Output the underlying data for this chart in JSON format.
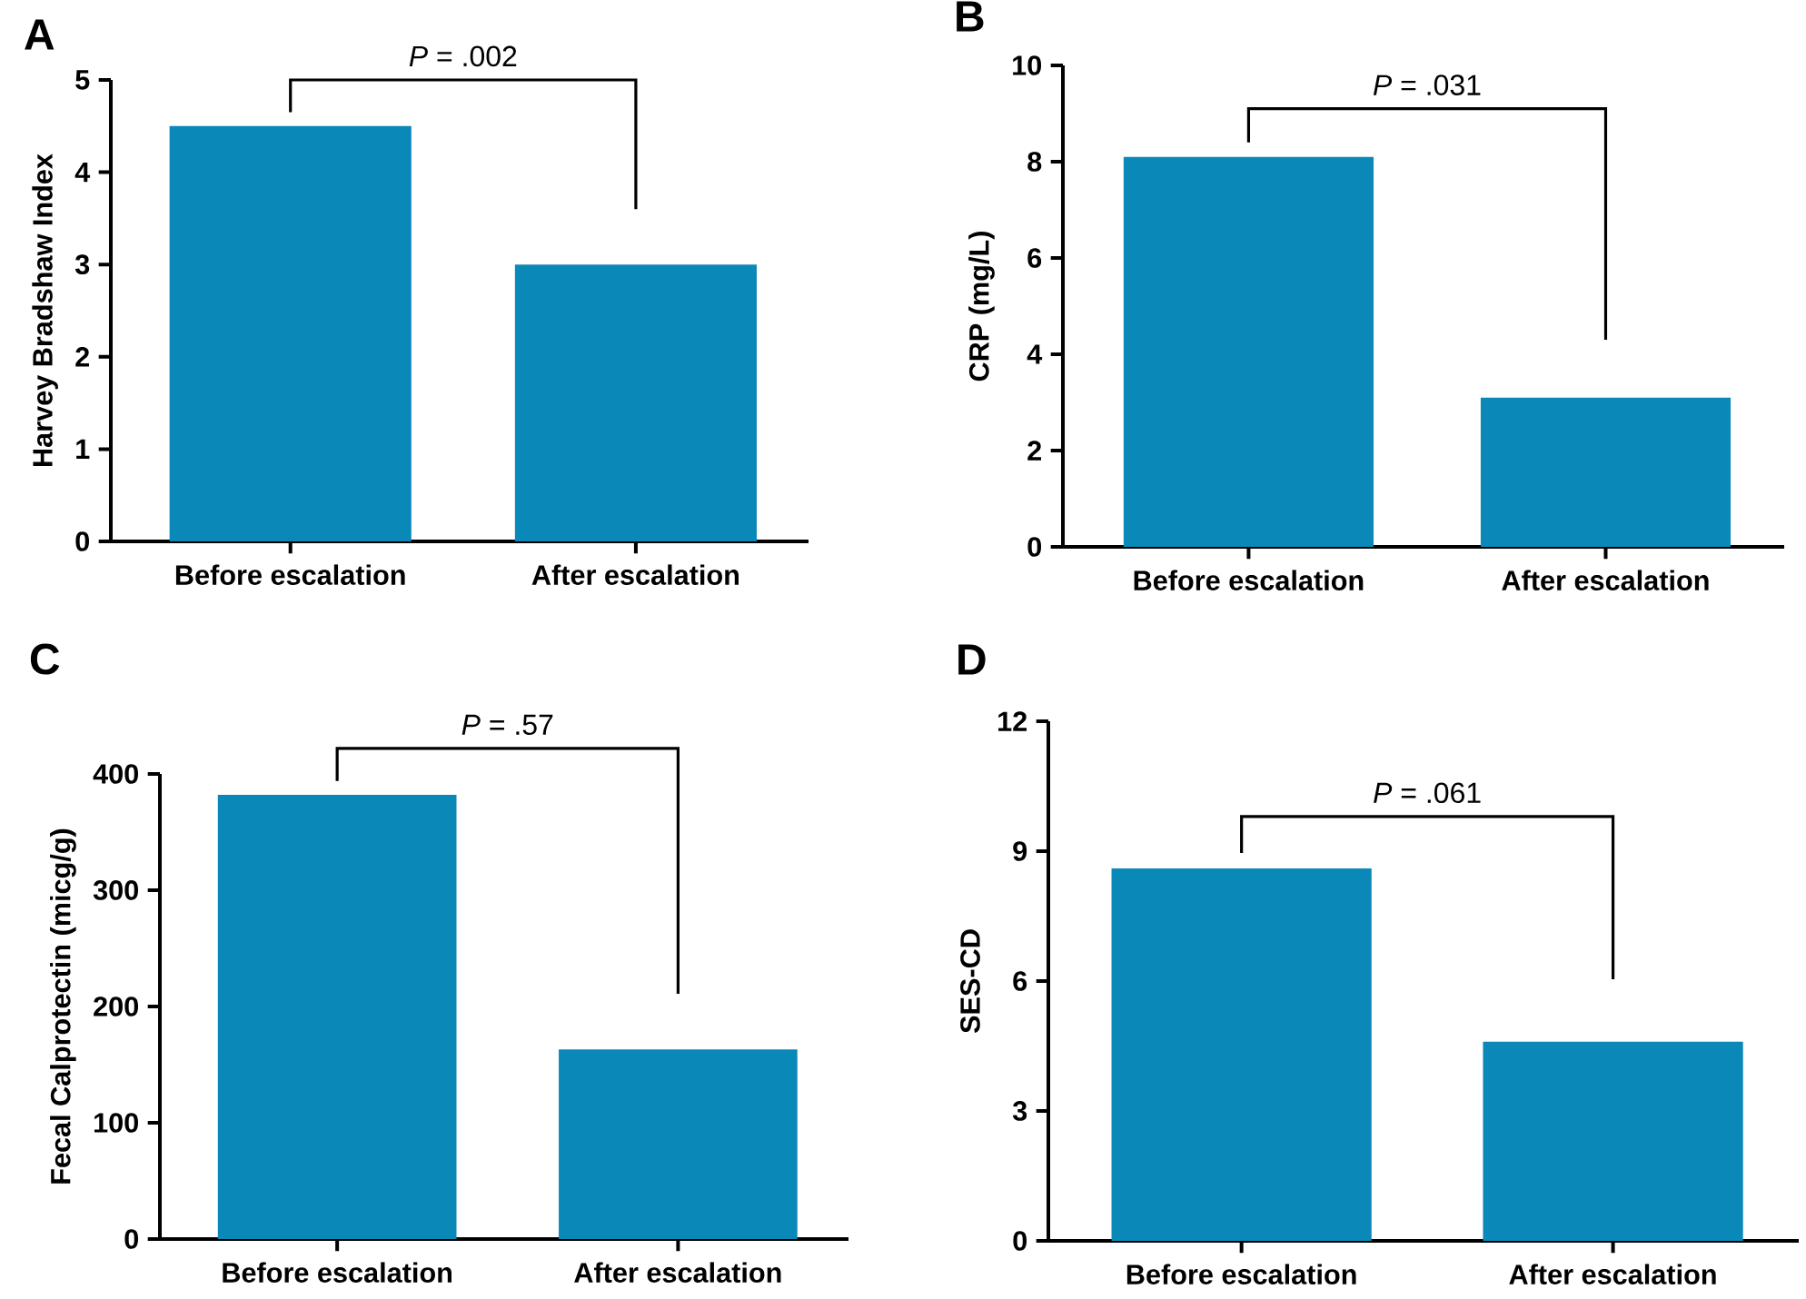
{
  "chart_data": [
    {
      "type": "bar",
      "title": "A",
      "ylabel": "Harvey Bradshaw Index",
      "categories": [
        "Before escalation",
        "After escalation"
      ],
      "values": [
        4.5,
        3.0
      ],
      "color": "#0a88b8",
      "ylim": [
        0,
        5
      ],
      "yticks": [
        0,
        1,
        2,
        3,
        4,
        5
      ],
      "annotations": [
        "*P* = .002"
      ]
    },
    {
      "type": "bar",
      "title": "B",
      "ylabel": "CRP (mg/L)",
      "categories": [
        "Before escalation",
        "After escalation"
      ],
      "values": [
        8.1,
        3.1
      ],
      "color": "#0a88b8",
      "ylim": [
        0,
        10
      ],
      "yticks": [
        0,
        2,
        4,
        6,
        8,
        10
      ],
      "annotations": [
        "*P* = .031"
      ]
    },
    {
      "type": "bar",
      "title": "C",
      "ylabel": "Fecal Calprotectin (micg/g)",
      "categories": [
        "Before escalation",
        "After escalation"
      ],
      "values": [
        382,
        163
      ],
      "color": "#0a88b8",
      "ylim": [
        0,
        400
      ],
      "yticks": [
        0,
        100,
        200,
        300,
        400
      ],
      "annotations": [
        "*P* = .57"
      ]
    },
    {
      "type": "bar",
      "title": "D",
      "ylabel": "SES-CD",
      "categories": [
        "Before escalation",
        "After escalation"
      ],
      "values": [
        8.6,
        4.6
      ],
      "color": "#0a88b8",
      "ylim": [
        0,
        12
      ],
      "yticks": [
        0,
        3,
        6,
        9,
        12
      ],
      "annotations": [
        "*P* = .061"
      ]
    }
  ]
}
